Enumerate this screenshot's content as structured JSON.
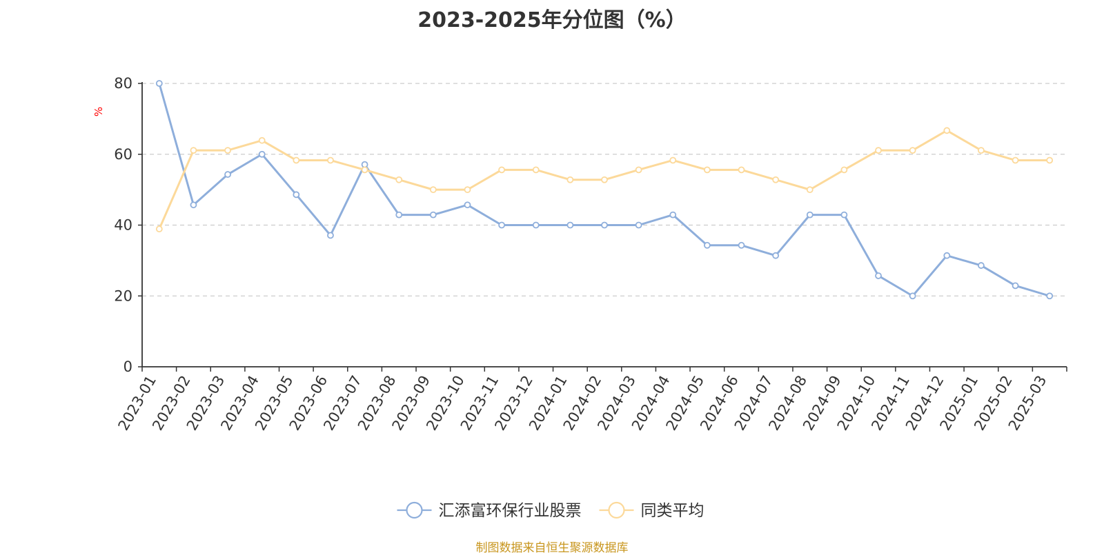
{
  "chart_data": {
    "type": "line",
    "title": "2023-2025年分位图（%）",
    "ylabel": "%",
    "ylim": [
      0,
      80
    ],
    "yticks": [
      "0",
      "20",
      "40",
      "60",
      "80"
    ],
    "grid": true,
    "legend_position": "bottom",
    "categories": [
      "2023-01",
      "2023-02",
      "2023-03",
      "2023-04",
      "2023-05",
      "2023-06",
      "2023-07",
      "2023-08",
      "2023-09",
      "2023-10",
      "2023-11",
      "2023-12",
      "2024-01",
      "2024-02",
      "2024-03",
      "2024-04",
      "2024-05",
      "2024-06",
      "2024-07",
      "2024-08",
      "2024-09",
      "2024-10",
      "2024-11",
      "2024-12",
      "2025-01",
      "2025-02",
      "2025-03"
    ],
    "series": [
      {
        "name": "汇添富环保行业股票",
        "color": "#8eaedb",
        "values": [
          80,
          45.7,
          54.3,
          60,
          48.6,
          37.1,
          57.1,
          42.9,
          42.9,
          45.7,
          40,
          40,
          40,
          40,
          40,
          42.9,
          34.3,
          34.3,
          31.4,
          42.9,
          42.9,
          25.7,
          20,
          31.4,
          28.6,
          22.9,
          20
        ]
      },
      {
        "name": "同类平均",
        "color": "#fcd99a",
        "values": [
          38.9,
          61.1,
          61.1,
          63.9,
          58.3,
          58.3,
          55.6,
          52.8,
          50,
          50,
          55.6,
          55.6,
          52.8,
          52.8,
          55.6,
          58.3,
          55.6,
          55.6,
          52.8,
          50,
          55.6,
          61.1,
          61.1,
          66.7,
          61.1,
          58.3,
          58.3
        ]
      }
    ]
  },
  "source_note": "制图数据来自恒生聚源数据库",
  "colors": {
    "axis": "#333333",
    "grid": "#cccccc",
    "unit": "#ff0000",
    "source": "#c8961e"
  }
}
